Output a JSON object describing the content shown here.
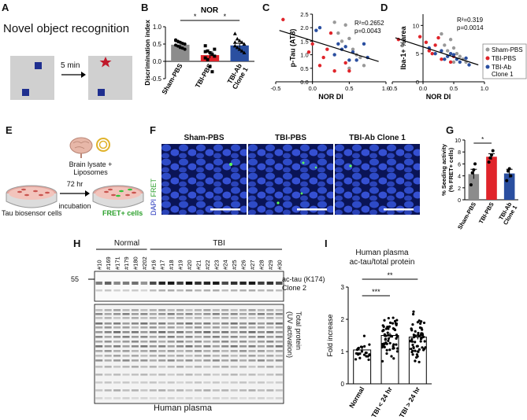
{
  "panels": {
    "a": {
      "label": "A",
      "title": "Novel object recognition",
      "arrow_label": "5 min"
    },
    "b": {
      "label": "B",
      "chart_data": {
        "type": "bar",
        "title": "NOR",
        "ylabel": "Discrimination index",
        "categories": [
          "Sham-PBS",
          "TBI-PBS",
          "TBI-Ab\nClone 1"
        ],
        "values": [
          0.48,
          0.18,
          0.46
        ],
        "errors": [
          0.05,
          0.09,
          0.06
        ],
        "colors": [
          "#8c8c8c",
          "#e0242a",
          "#2a4fa0"
        ],
        "ylim": [
          -0.5,
          1.0
        ],
        "yticks": [
          "1.0",
          "0.5",
          "0.0",
          "-0.5"
        ],
        "significance": [
          {
            "pair": [
              0,
              1
            ],
            "label": "*"
          },
          {
            "pair": [
              1,
              2
            ],
            "label": "*"
          }
        ],
        "points": [
          [
            0.62,
            0.58,
            0.55,
            0.52,
            0.5,
            0.47,
            0.44,
            0.4,
            0.38,
            0.35,
            0.6
          ],
          [
            0.45,
            0.3,
            0.25,
            0.2,
            0.15,
            0.1,
            0.05,
            -0.15,
            -0.3,
            0.35,
            0.28
          ],
          [
            0.8,
            0.65,
            0.6,
            0.55,
            0.5,
            0.45,
            0.4,
            0.35,
            0.3,
            0.25,
            0.55
          ]
        ]
      }
    },
    "c": {
      "label": "C",
      "chart_data": {
        "type": "scatter",
        "ylabel": "p-Tau (AT8)",
        "xlabel": "NOR DI",
        "xlim": [
          -0.5,
          1.0
        ],
        "ylim": [
          0.0,
          2.5
        ],
        "xticks": [
          "-0.5",
          "0.0",
          "0.5",
          "1.0"
        ],
        "yticks": [
          "0.0",
          "0.5",
          "1.0",
          "1.5",
          "2.0",
          "2.5"
        ],
        "annotation": [
          "R²=0.2652",
          "p=0.0043"
        ],
        "fit_line": [
          [
            -0.45,
            1.9
          ],
          [
            0.9,
            0.75
          ]
        ],
        "series": [
          {
            "color": "#999999",
            "points": [
              [
                0.3,
                2.2
              ],
              [
                0.45,
                2.1
              ],
              [
                0.5,
                1.6
              ],
              [
                0.55,
                1.2
              ],
              [
                0.6,
                1.0
              ],
              [
                0.4,
                1.5
              ],
              [
                0.65,
                0.9
              ],
              [
                0.7,
                0.6
              ],
              [
                0.5,
                0.5
              ],
              [
                0.35,
                1.8
              ]
            ]
          },
          {
            "color": "#e0242a",
            "points": [
              [
                -0.4,
                2.3
              ],
              [
                0.0,
                1.4
              ],
              [
                0.1,
                0.6
              ],
              [
                0.2,
                1.2
              ],
              [
                0.3,
                0.4
              ],
              [
                0.5,
                0.4
              ],
              [
                0.25,
                1.8
              ],
              [
                0.15,
                0.9
              ],
              [
                -0.05,
                1.1
              ],
              [
                0.45,
                0.7
              ]
            ]
          },
          {
            "color": "#2a4fa0",
            "points": [
              [
                0.05,
                1.9
              ],
              [
                0.1,
                2.0
              ],
              [
                0.35,
                1.4
              ],
              [
                0.4,
                1.2
              ],
              [
                0.45,
                1.3
              ],
              [
                0.55,
                1.1
              ],
              [
                0.6,
                0.8
              ],
              [
                0.7,
                1.4
              ],
              [
                0.75,
                0.9
              ],
              [
                0.3,
                1.0
              ],
              [
                0.5,
                0.8
              ]
            ]
          }
        ]
      }
    },
    "d": {
      "label": "D",
      "chart_data": {
        "type": "scatter",
        "ylabel": "Iba-1+ %area",
        "xlabel": "NOR DI",
        "xlim": [
          -0.5,
          1.0
        ],
        "ylim": [
          0,
          12
        ],
        "xticks": [
          "-0.5",
          "0.0",
          "0.5",
          "1.0"
        ],
        "yticks": [
          "0",
          "5",
          "10"
        ],
        "annotation": [
          "R²=0.319",
          "p=0.0014"
        ],
        "fit_line": [
          [
            -0.45,
            7.8
          ],
          [
            0.9,
            3.0
          ]
        ],
        "legend": [
          "Sham-PBS",
          "TBI-PBS",
          "TBI-Ab\nClone 1"
        ],
        "series": [
          {
            "name": "Sham-PBS",
            "color": "#999999",
            "points": [
              [
                0.3,
                8.5
              ],
              [
                0.45,
                7.5
              ],
              [
                0.5,
                6.0
              ],
              [
                0.55,
                5.0
              ],
              [
                0.6,
                4.5
              ],
              [
                0.4,
                5.5
              ],
              [
                0.65,
                4.0
              ],
              [
                0.7,
                3.5
              ],
              [
                0.5,
                3.5
              ],
              [
                0.35,
                6.5
              ]
            ]
          },
          {
            "name": "TBI-PBS",
            "color": "#e0242a",
            "points": [
              [
                -0.4,
                7.5
              ],
              [
                -0.05,
                8.0
              ],
              [
                0.05,
                7.0
              ],
              [
                0.1,
                5.5
              ],
              [
                0.2,
                6.5
              ],
              [
                0.3,
                4.0
              ],
              [
                0.5,
                4.5
              ],
              [
                0.15,
                5.0
              ],
              [
                0.25,
                7.8
              ],
              [
                0.45,
                3.5
              ]
            ]
          },
          {
            "name": "TBI-Ab\nClone 1",
            "color": "#2a4fa0",
            "points": [
              [
                0.1,
                6.0
              ],
              [
                0.2,
                5.0
              ],
              [
                0.3,
                5.5
              ],
              [
                0.4,
                4.5
              ],
              [
                0.45,
                5.0
              ],
              [
                0.55,
                4.0
              ],
              [
                0.6,
                3.5
              ],
              [
                0.7,
                4.2
              ],
              [
                0.75,
                3.0
              ],
              [
                0.35,
                4.0
              ],
              [
                0.5,
                4.8
              ]
            ]
          }
        ]
      }
    },
    "e": {
      "label": "E",
      "brain_label": "Brain lysate +\nLiposomes",
      "arrow_label_1": "72 hr",
      "arrow_label_2": "incubation",
      "left_caption": "Tau biosensor cells",
      "right_caption": "FRET+ cells"
    },
    "f": {
      "label": "F",
      "side_dapi": "DAPI",
      "side_fret": "FRET",
      "titles": [
        "Sham-PBS",
        "TBI-PBS",
        "TBI-Ab Clone 1"
      ]
    },
    "g": {
      "label": "G",
      "chart_data": {
        "type": "bar",
        "ylabel": "% Seeding activity\n(% FRET+ cells)",
        "categories": [
          "Sham-PBS",
          "TBI-PBS",
          "TBI-Ab\nClone 1"
        ],
        "values": [
          4.3,
          7.2,
          4.4
        ],
        "errors": [
          0.8,
          0.5,
          0.7
        ],
        "colors": [
          "#8c8c8c",
          "#e0242a",
          "#2a4fa0"
        ],
        "ylim": [
          0,
          10
        ],
        "yticks": [
          "0",
          "2",
          "4",
          "6",
          "8",
          "10"
        ],
        "significance": [
          {
            "pair": [
              0,
              1
            ],
            "label": "*"
          }
        ],
        "points": [
          [
            2.5,
            4.5,
            5.0,
            6.0
          ],
          [
            6.3,
            7.0,
            7.5,
            8.2
          ],
          [
            3.2,
            4.8,
            5.2,
            4.0
          ]
        ]
      }
    },
    "h": {
      "label": "H",
      "group_normal": "Normal",
      "group_tbi": "TBI",
      "lanes": [
        "#10",
        "#169",
        "#171",
        "#179",
        "#180",
        "#202",
        "#16",
        "#17",
        "#18",
        "#19",
        "#20",
        "#21",
        "#22",
        "#23",
        "#24",
        "#25",
        "#26",
        "#27",
        "#28",
        "#29",
        "#30"
      ],
      "mw_marker": "55",
      "blot_label_1": "ac-tau (K174)",
      "blot_label_2": "Clone 2",
      "side_label_1": "Total protein",
      "side_label_2": "(UV activation)",
      "caption": "Human plasma"
    },
    "i": {
      "label": "I",
      "chart_data": {
        "type": "bar",
        "title": "Human plasma\nac-tau/total protein",
        "ylabel": "Fold increase",
        "categories": [
          "Normal",
          "TBI < 24 hr",
          "TBI > 24 hr"
        ],
        "values": [
          1.05,
          1.5,
          1.45
        ],
        "errors": [
          0.07,
          0.08,
          0.07
        ],
        "ylim": [
          0,
          3
        ],
        "yticks": [
          "0",
          "1",
          "2",
          "3"
        ],
        "significance": [
          {
            "pair": [
              0,
              1
            ],
            "label": "***"
          },
          {
            "pair": [
              0,
              2
            ],
            "label": "**"
          }
        ]
      }
    }
  }
}
